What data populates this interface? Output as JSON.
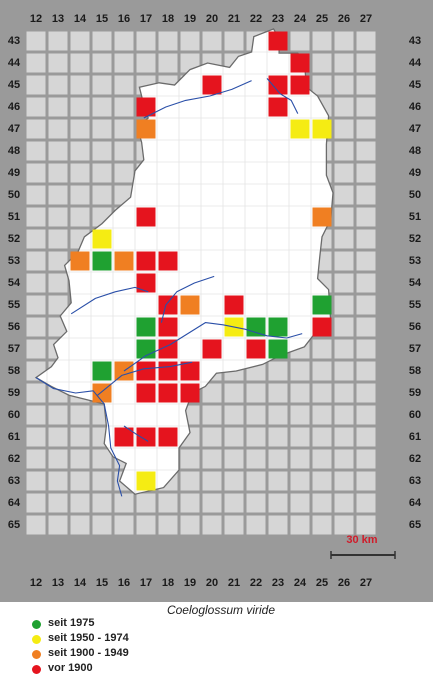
{
  "map": {
    "x_labels": [
      "12",
      "13",
      "14",
      "15",
      "16",
      "17",
      "18",
      "19",
      "20",
      "21",
      "22",
      "23",
      "24",
      "25",
      "26",
      "27"
    ],
    "y_labels": [
      "43",
      "44",
      "45",
      "46",
      "47",
      "48",
      "49",
      "50",
      "51",
      "52",
      "53",
      "54",
      "55",
      "56",
      "57",
      "58",
      "59",
      "60",
      "61",
      "62",
      "63",
      "64",
      "65"
    ],
    "colors": {
      "background": "#9a9a9a",
      "outside_cell": "#d6d6d6",
      "inside_cell": "#ffffff",
      "grid_line": "#ffffff",
      "river": "#2a4fa8",
      "state_border": "#6b6b6b"
    },
    "scale_bar": {
      "label": "30 km",
      "color": "#d01c2a"
    }
  },
  "title": "Coeloglossum viride",
  "legend": [
    {
      "id": "green",
      "label": "seit 1975",
      "color": "#1fa131"
    },
    {
      "id": "yellow",
      "label": "seit 1950 - 1974",
      "color": "#f5ec13"
    },
    {
      "id": "orange",
      "label": "seit 1900 - 1949",
      "color": "#f07f22"
    },
    {
      "id": "red",
      "label": "vor 1900",
      "color": "#e5141e"
    }
  ],
  "records": [
    {
      "x": 23,
      "y": 43,
      "period": "red"
    },
    {
      "x": 24,
      "y": 44,
      "period": "red"
    },
    {
      "x": 20,
      "y": 45,
      "period": "red"
    },
    {
      "x": 23,
      "y": 45,
      "period": "red"
    },
    {
      "x": 24,
      "y": 45,
      "period": "red"
    },
    {
      "x": 17,
      "y": 46,
      "period": "red"
    },
    {
      "x": 23,
      "y": 46,
      "period": "red"
    },
    {
      "x": 17,
      "y": 47,
      "period": "orange"
    },
    {
      "x": 24,
      "y": 47,
      "period": "yellow"
    },
    {
      "x": 25,
      "y": 47,
      "period": "yellow"
    },
    {
      "x": 17,
      "y": 51,
      "period": "red"
    },
    {
      "x": 25,
      "y": 51,
      "period": "orange"
    },
    {
      "x": 15,
      "y": 52,
      "period": "yellow"
    },
    {
      "x": 14,
      "y": 53,
      "period": "orange"
    },
    {
      "x": 15,
      "y": 53,
      "period": "green"
    },
    {
      "x": 16,
      "y": 53,
      "period": "orange"
    },
    {
      "x": 17,
      "y": 53,
      "period": "red"
    },
    {
      "x": 18,
      "y": 53,
      "period": "red"
    },
    {
      "x": 17,
      "y": 54,
      "period": "red"
    },
    {
      "x": 18,
      "y": 55,
      "period": "red"
    },
    {
      "x": 19,
      "y": 55,
      "period": "orange"
    },
    {
      "x": 21,
      "y": 55,
      "period": "red"
    },
    {
      "x": 25,
      "y": 55,
      "period": "green"
    },
    {
      "x": 17,
      "y": 56,
      "period": "green"
    },
    {
      "x": 18,
      "y": 56,
      "period": "red"
    },
    {
      "x": 21,
      "y": 56,
      "period": "yellow"
    },
    {
      "x": 22,
      "y": 56,
      "period": "green"
    },
    {
      "x": 23,
      "y": 56,
      "period": "green"
    },
    {
      "x": 25,
      "y": 56,
      "period": "red"
    },
    {
      "x": 17,
      "y": 57,
      "period": "green"
    },
    {
      "x": 18,
      "y": 57,
      "period": "red"
    },
    {
      "x": 20,
      "y": 57,
      "period": "red"
    },
    {
      "x": 22,
      "y": 57,
      "period": "red"
    },
    {
      "x": 23,
      "y": 57,
      "period": "green"
    },
    {
      "x": 15,
      "y": 58,
      "period": "green"
    },
    {
      "x": 16,
      "y": 58,
      "period": "orange"
    },
    {
      "x": 17,
      "y": 58,
      "period": "red"
    },
    {
      "x": 18,
      "y": 58,
      "period": "red"
    },
    {
      "x": 19,
      "y": 58,
      "period": "red"
    },
    {
      "x": 15,
      "y": 59,
      "period": "orange"
    },
    {
      "x": 17,
      "y": 59,
      "period": "red"
    },
    {
      "x": 18,
      "y": 59,
      "period": "red"
    },
    {
      "x": 19,
      "y": 59,
      "period": "red"
    },
    {
      "x": 16,
      "y": 61,
      "period": "red"
    },
    {
      "x": 17,
      "y": 61,
      "period": "red"
    },
    {
      "x": 18,
      "y": 61,
      "period": "red"
    },
    {
      "x": 17,
      "y": 63,
      "period": "yellow"
    }
  ]
}
